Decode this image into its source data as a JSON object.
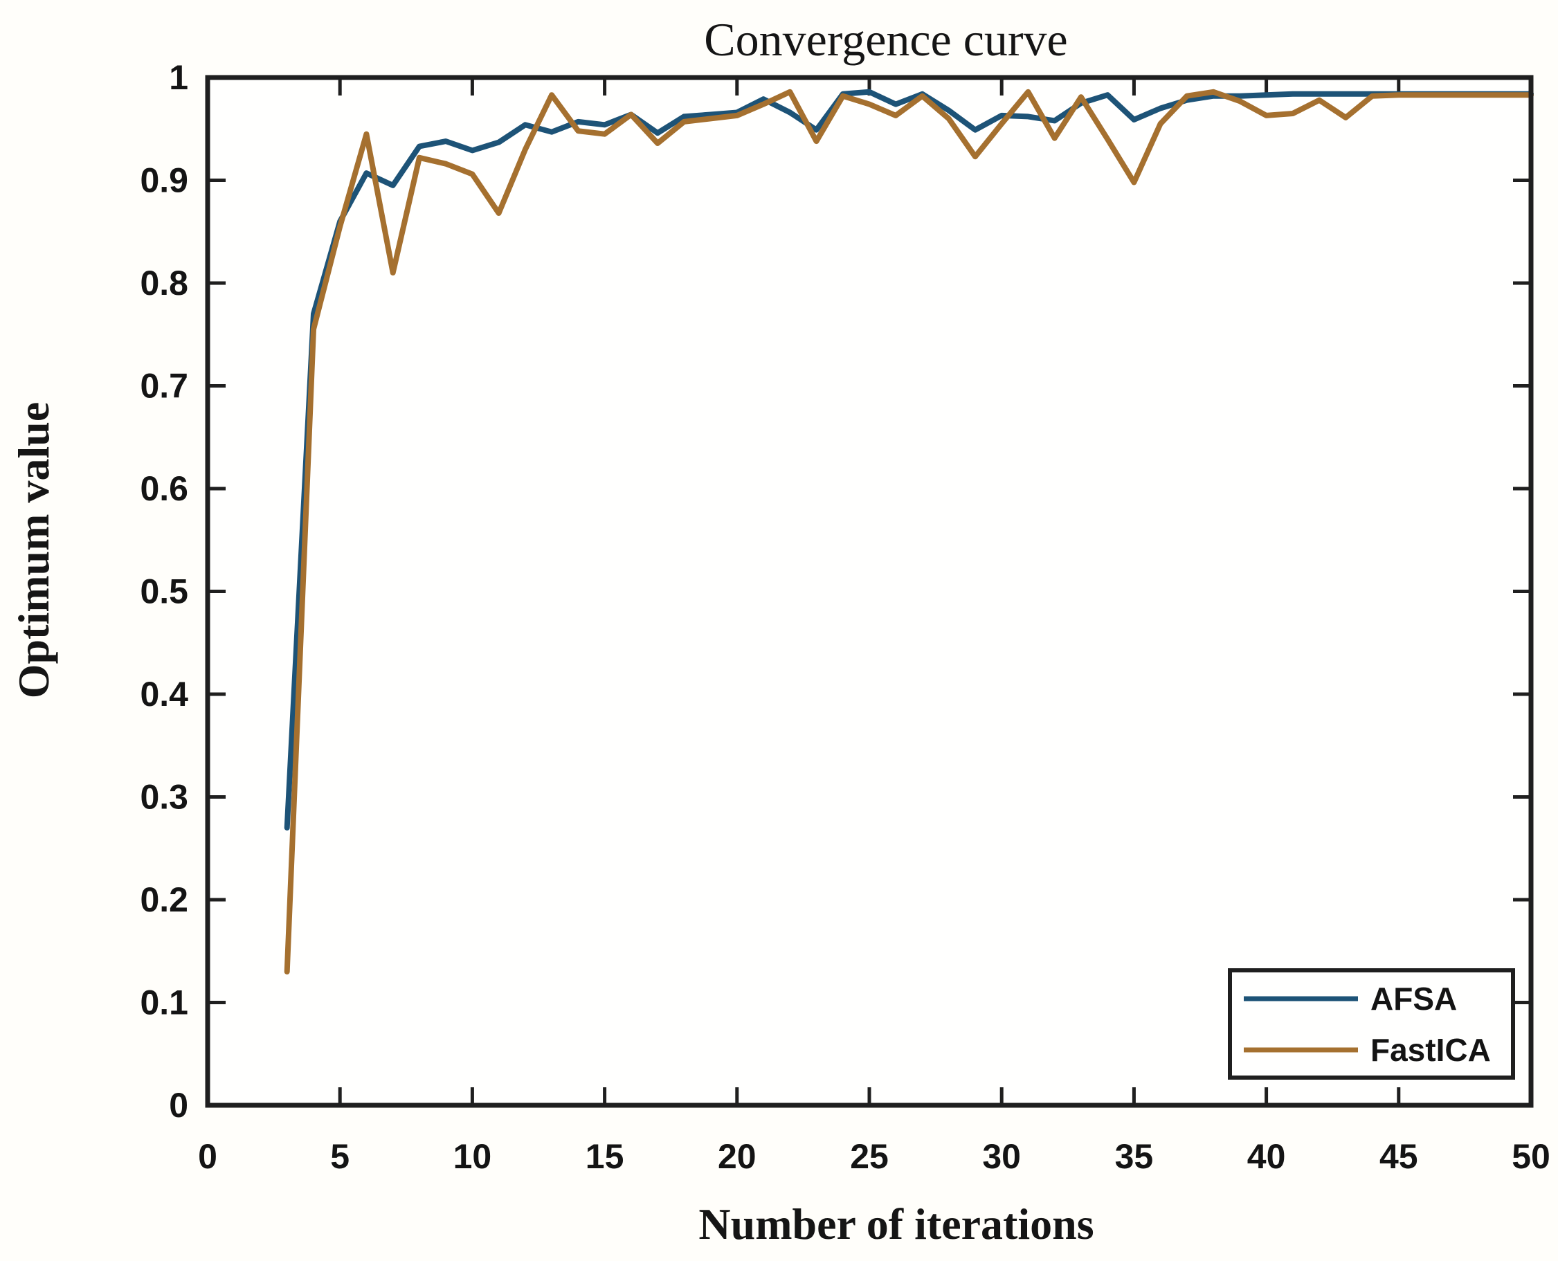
{
  "figure": {
    "background": "#fffefa",
    "frame_color": "#1f1f1f",
    "text_color": "#141414"
  },
  "chart_data": {
    "type": "line",
    "title": "Convergence curve",
    "xlabel": "Number of iterations",
    "ylabel": "Optimum value",
    "xlim": [
      0,
      50
    ],
    "ylim": [
      0,
      1
    ],
    "x_ticks": [
      0,
      5,
      10,
      15,
      20,
      25,
      30,
      35,
      40,
      45,
      50
    ],
    "x_tick_labels": [
      "0",
      "5",
      "10",
      "15",
      "20",
      "25",
      "30",
      "35",
      "40",
      "45",
      "50"
    ],
    "y_ticks": [
      0,
      0.1,
      0.2,
      0.3,
      0.4,
      0.5,
      0.6,
      0.7,
      0.8,
      0.9,
      1
    ],
    "y_tick_labels": [
      "0",
      "0.1",
      "0.2",
      "0.3",
      "0.4",
      "0.5",
      "0.6",
      "0.7",
      "0.8",
      "0.9",
      "1"
    ],
    "grid": false,
    "legend_position": "bottom-right",
    "series": [
      {
        "name": "AFSA",
        "color": "#1d5377",
        "x": [
          3,
          4,
          5,
          6,
          7,
          8,
          9,
          10,
          11,
          12,
          13,
          14,
          15,
          16,
          17,
          18,
          19,
          20,
          21,
          22,
          23,
          24,
          25,
          26,
          27,
          28,
          29,
          30,
          31,
          32,
          33,
          34,
          35,
          36,
          37,
          38,
          39,
          40,
          41,
          42,
          43,
          44,
          45,
          46,
          47,
          48,
          49,
          50
        ],
        "values": [
          0.27,
          0.77,
          0.86,
          0.907,
          0.895,
          0.933,
          0.938,
          0.929,
          0.937,
          0.954,
          0.947,
          0.957,
          0.954,
          0.964,
          0.946,
          0.962,
          0.964,
          0.966,
          0.979,
          0.966,
          0.949,
          0.984,
          0.986,
          0.974,
          0.984,
          0.968,
          0.949,
          0.963,
          0.962,
          0.958,
          0.975,
          0.983,
          0.959,
          0.97,
          0.978,
          0.982,
          0.982,
          0.983,
          0.984,
          0.984,
          0.984,
          0.984,
          0.984,
          0.984,
          0.984,
          0.984,
          0.984,
          0.984
        ]
      },
      {
        "name": "FastICA",
        "color": "#a5702f",
        "x": [
          3,
          4,
          5,
          6,
          7,
          8,
          9,
          10,
          11,
          12,
          13,
          14,
          15,
          16,
          17,
          18,
          19,
          20,
          21,
          22,
          23,
          24,
          25,
          26,
          27,
          28,
          29,
          30,
          31,
          32,
          33,
          34,
          35,
          36,
          37,
          38,
          39,
          40,
          41,
          42,
          43,
          44,
          45,
          46,
          47,
          48,
          49,
          50
        ],
        "values": [
          0.13,
          0.755,
          0.855,
          0.945,
          0.81,
          0.922,
          0.916,
          0.906,
          0.868,
          0.93,
          0.983,
          0.948,
          0.945,
          0.964,
          0.936,
          0.957,
          0.96,
          0.963,
          0.974,
          0.986,
          0.938,
          0.982,
          0.974,
          0.963,
          0.982,
          0.96,
          0.923,
          0.955,
          0.986,
          0.941,
          0.981,
          0.94,
          0.898,
          0.955,
          0.982,
          0.986,
          0.977,
          0.963,
          0.965,
          0.978,
          0.961,
          0.982,
          0.983,
          0.983,
          0.983,
          0.983,
          0.983,
          0.983
        ]
      }
    ]
  }
}
